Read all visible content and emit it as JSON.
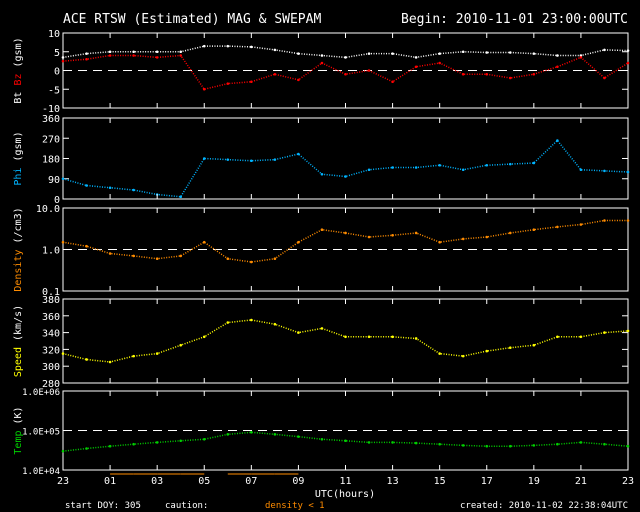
{
  "header": {
    "title": "ACE RTSW (Estimated) MAG & SWEPAM",
    "begin": "Begin: 2010-11-01 23:00:00UTC"
  },
  "footer": {
    "xlabel": "UTC(hours)",
    "start_doy": "start DOY: 305",
    "caution": "caution:",
    "caution_note": "density < 1",
    "created": "created: 2010-11-02 22:38:04UTC"
  },
  "colors": {
    "bt": "#ffffff",
    "bz": "#ff0000",
    "phi": "#00b4ff",
    "density": "#ff8c00",
    "speed": "#ffff00",
    "temp": "#00d000",
    "axis": "#ffffff"
  },
  "chart_data": {
    "type": "scatter",
    "x_ticks": [
      "23",
      "01",
      "03",
      "05",
      "07",
      "09",
      "11",
      "13",
      "15",
      "17",
      "19",
      "21",
      "23"
    ],
    "x_range_hours": [
      0,
      24
    ],
    "x": [
      0,
      1,
      2,
      3,
      4,
      5,
      6,
      7,
      8,
      9,
      10,
      11,
      12,
      13,
      14,
      15,
      16,
      17,
      18,
      19,
      20,
      21,
      22,
      23,
      24
    ],
    "panels": [
      {
        "id": "mag",
        "ylabel_parts": [
          {
            "text": "Bt",
            "color": "#ffffff"
          },
          {
            "text": " Bz",
            "color": "#ff0000"
          },
          {
            "text": " (gsm)",
            "color": "#ffffff"
          }
        ],
        "scale": "linear",
        "ylim": [
          -10,
          10
        ],
        "ticks": [
          {
            "v": 10,
            "label": "10"
          },
          {
            "v": 5,
            "label": "5"
          },
          {
            "v": 0,
            "label": "0"
          },
          {
            "v": -5,
            "label": "-5"
          },
          {
            "v": -10,
            "label": "-10"
          }
        ],
        "ref_line": 0,
        "series": [
          {
            "name": "Bt",
            "color": "#ffffff",
            "values": [
              3.5,
              4.5,
              5,
              5,
              5,
              5,
              6.5,
              6.5,
              6.3,
              5.5,
              4.5,
              4,
              3.5,
              4.5,
              4.5,
              3.5,
              4.5,
              5,
              4.8,
              4.8,
              4.5,
              4,
              4,
              5.5,
              5.3
            ]
          },
          {
            "name": "Bz",
            "color": "#ff0000",
            "values": [
              2.5,
              3,
              4,
              4,
              3.5,
              4,
              -5,
              -3.5,
              -3,
              -1,
              -2.5,
              2,
              -1,
              0,
              -3,
              1,
              2,
              -1,
              -1,
              -2,
              -1,
              1,
              3.5,
              -2,
              2
            ]
          }
        ]
      },
      {
        "id": "phi",
        "ylabel_parts": [
          {
            "text": "Phi",
            "color": "#00b4ff"
          },
          {
            "text": " (gsm)",
            "color": "#ffffff"
          }
        ],
        "scale": "linear",
        "ylim": [
          0,
          360
        ],
        "ticks": [
          {
            "v": 360,
            "label": "360"
          },
          {
            "v": 270,
            "label": "270"
          },
          {
            "v": 180,
            "label": "180"
          },
          {
            "v": 90,
            "label": "90"
          },
          {
            "v": 0,
            "label": "0"
          }
        ],
        "series": [
          {
            "name": "Phi",
            "color": "#00b4ff",
            "values": [
              90,
              60,
              50,
              40,
              20,
              10,
              180,
              175,
              170,
              175,
              200,
              110,
              100,
              130,
              140,
              140,
              150,
              130,
              150,
              155,
              160,
              260,
              130,
              125,
              120
            ]
          }
        ]
      },
      {
        "id": "density",
        "ylabel_parts": [
          {
            "text": "Density",
            "color": "#ff8c00"
          },
          {
            "text": " (/cm3)",
            "color": "#ffffff"
          }
        ],
        "scale": "log",
        "ylim": [
          0.1,
          10
        ],
        "ticks": [
          {
            "v": 10,
            "label": "10.0"
          },
          {
            "v": 1,
            "label": "1.0"
          },
          {
            "v": 0.1,
            "label": "0.1"
          }
        ],
        "ref_line": 1,
        "series": [
          {
            "name": "Density",
            "color": "#ff8c00",
            "values": [
              1.5,
              1.2,
              0.8,
              0.7,
              0.6,
              0.7,
              1.5,
              0.6,
              0.5,
              0.6,
              1.5,
              3,
              2.5,
              2,
              2.2,
              2.5,
              1.5,
              1.8,
              2,
              2.5,
              3,
              3.5,
              4,
              5,
              5
            ]
          }
        ]
      },
      {
        "id": "speed",
        "ylabel_parts": [
          {
            "text": "Speed",
            "color": "#ffff00"
          },
          {
            "text": " (km/s)",
            "color": "#ffffff"
          }
        ],
        "scale": "linear",
        "ylim": [
          280,
          380
        ],
        "ticks": [
          {
            "v": 380,
            "label": "380"
          },
          {
            "v": 360,
            "label": "360"
          },
          {
            "v": 340,
            "label": "340"
          },
          {
            "v": 320,
            "label": "320"
          },
          {
            "v": 300,
            "label": "300"
          },
          {
            "v": 280,
            "label": "280"
          }
        ],
        "series": [
          {
            "name": "Speed",
            "color": "#ffff00",
            "values": [
              315,
              308,
              305,
              312,
              315,
              325,
              335,
              352,
              355,
              350,
              340,
              345,
              335,
              335,
              335,
              333,
              315,
              312,
              318,
              322,
              325,
              335,
              335,
              340,
              342
            ]
          }
        ]
      },
      {
        "id": "temp",
        "ylabel_parts": [
          {
            "text": "Temp",
            "color": "#00d000"
          },
          {
            "text": " (K)",
            "color": "#ffffff"
          }
        ],
        "scale": "log",
        "ylim": [
          10000,
          1000000
        ],
        "ticks": [
          {
            "v": 1000000,
            "label": "1.0E+06"
          },
          {
            "v": 100000,
            "label": "1.0E+05"
          },
          {
            "v": 10000,
            "label": "1.0E+04"
          }
        ],
        "ref_line": 100000,
        "series": [
          {
            "name": "Temp",
            "color": "#00d000",
            "values": [
              30000,
              35000,
              40000,
              45000,
              50000,
              55000,
              60000,
              80000,
              90000,
              80000,
              70000,
              60000,
              55000,
              50000,
              50000,
              48000,
              45000,
              42000,
              40000,
              40000,
              42000,
              45000,
              50000,
              45000,
              40000
            ]
          }
        ]
      }
    ]
  }
}
